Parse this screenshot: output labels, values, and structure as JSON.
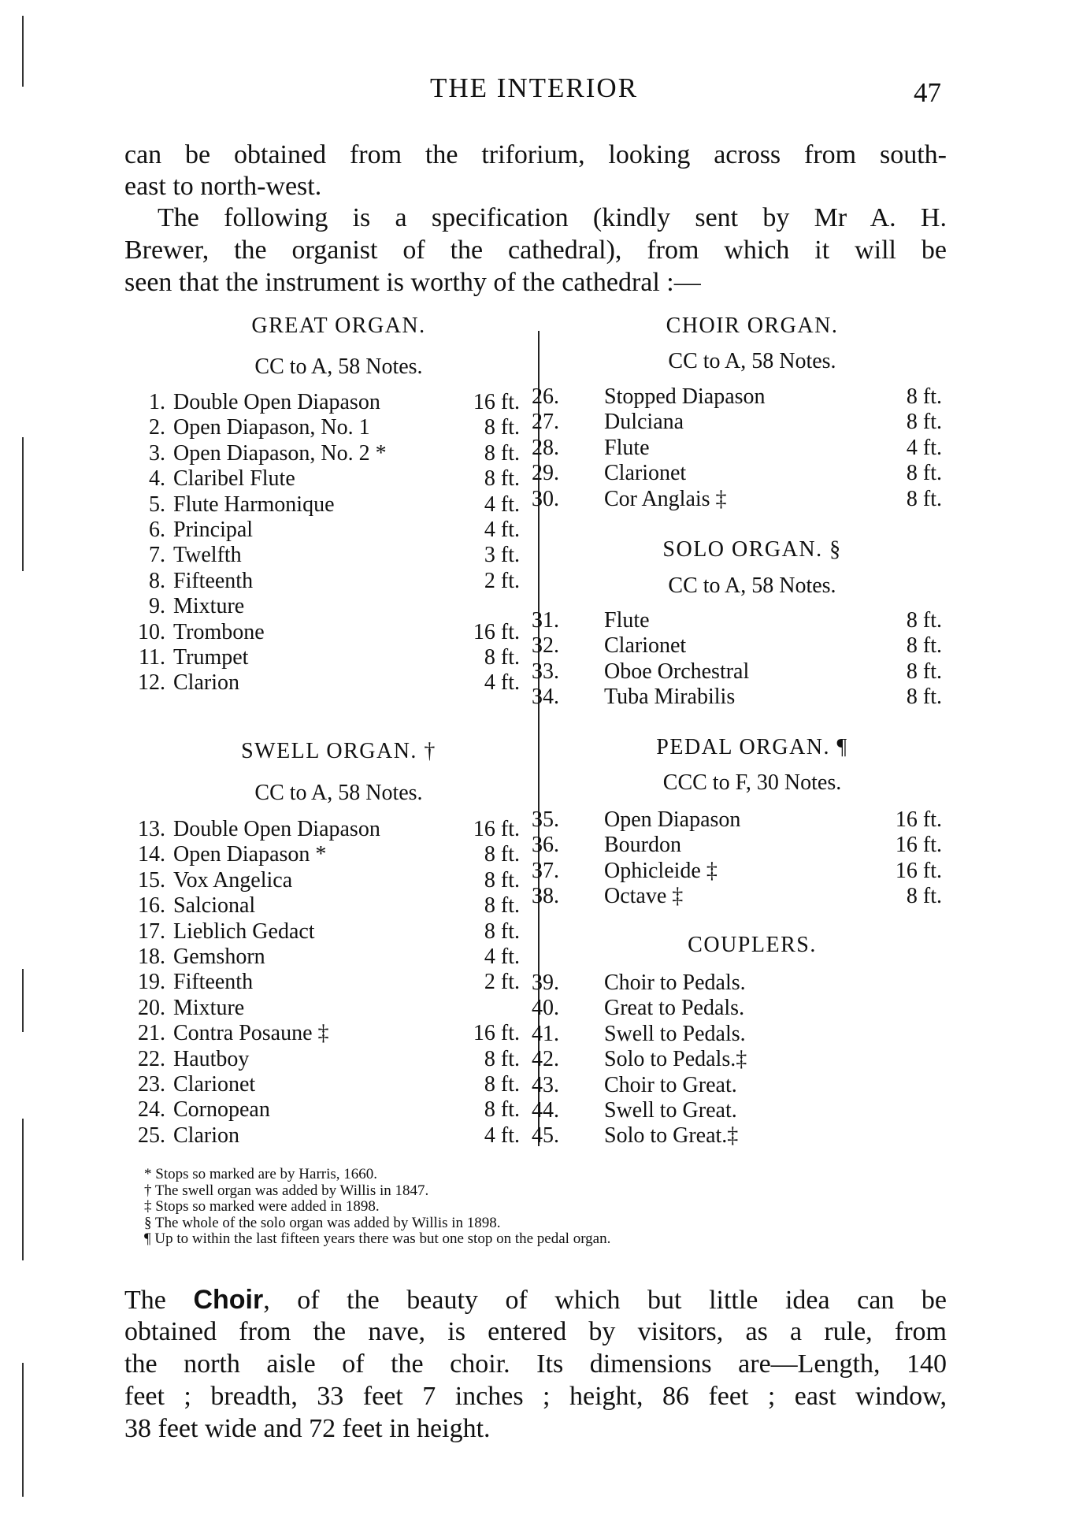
{
  "header": {
    "title": "THE INTERIOR",
    "page_number": "47"
  },
  "intro_lines": [
    "can be obtained from the triforium, looking across from south-",
    "east to north-west.",
    "The following is a specification (kindly sent by Mr A. H.",
    "Brewer, the organist of the cathedral), from which it will be",
    "seen that the instrument is worthy of the cathedral :—"
  ],
  "sections": {
    "great": {
      "heading": "GREAT ORGAN.",
      "compass": "CC to A, 58 Notes.",
      "stops": [
        {
          "num": "1.",
          "name": "Double Open Diapason",
          "value": "16 ft."
        },
        {
          "num": "2.",
          "name": "Open Diapason, No. 1",
          "value": "8 ft."
        },
        {
          "num": "3.",
          "name": "Open Diapason, No. 2 *",
          "value": "8 ft."
        },
        {
          "num": "4.",
          "name": "Claribel Flute",
          "value": "8 ft."
        },
        {
          "num": "5.",
          "name": "Flute Harmonique",
          "value": "4 ft."
        },
        {
          "num": "6.",
          "name": "Principal",
          "value": "4 ft."
        },
        {
          "num": "7.",
          "name": "Twelfth",
          "value": "3 ft."
        },
        {
          "num": "8.",
          "name": "Fifteenth",
          "value": "2 ft."
        },
        {
          "num": "9.",
          "name": "Mixture",
          "value": ""
        },
        {
          "num": "10.",
          "name": "Trombone",
          "value": "16 ft."
        },
        {
          "num": "11.",
          "name": "Trumpet",
          "value": "8 ft."
        },
        {
          "num": "12.",
          "name": "Clarion",
          "value": "4 ft."
        }
      ]
    },
    "swell": {
      "heading": "SWELL ORGAN. †",
      "compass": "CC to A, 58 Notes.",
      "stops": [
        {
          "num": "13.",
          "name": "Double Open Diapason",
          "value": "16 ft."
        },
        {
          "num": "14.",
          "name": "Open Diapason *",
          "value": "8 ft."
        },
        {
          "num": "15.",
          "name": "Vox Angelica",
          "value": "8 ft."
        },
        {
          "num": "16.",
          "name": "Salcional",
          "value": "8 ft."
        },
        {
          "num": "17.",
          "name": "Lieblich Gedact",
          "value": "8 ft."
        },
        {
          "num": "18.",
          "name": "Gemshorn",
          "value": "4 ft."
        },
        {
          "num": "19.",
          "name": "Fifteenth",
          "value": "2 ft."
        },
        {
          "num": "20.",
          "name": "Mixture",
          "value": ""
        },
        {
          "num": "21.",
          "name": "Contra Posaune ‡",
          "value": "16 ft."
        },
        {
          "num": "22.",
          "name": "Hautboy",
          "value": "8 ft."
        },
        {
          "num": "23.",
          "name": "Clarionet",
          "value": "8 ft."
        },
        {
          "num": "24.",
          "name": "Cornopean",
          "value": "8 ft."
        },
        {
          "num": "25.",
          "name": "Clarion",
          "value": "4 ft."
        }
      ]
    },
    "choir": {
      "heading": "CHOIR ORGAN.",
      "compass": "CC to A, 58 Notes.",
      "stops": [
        {
          "num": "26.",
          "name": "Stopped Diapason",
          "value": "8 ft."
        },
        {
          "num": "27.",
          "name": "Dulciana",
          "value": "8 ft."
        },
        {
          "num": "28.",
          "name": "Flute",
          "value": "4 ft."
        },
        {
          "num": "29.",
          "name": "Clarionet",
          "value": "8 ft."
        },
        {
          "num": "30.",
          "name": "Cor Anglais ‡",
          "value": "8 ft."
        }
      ]
    },
    "solo": {
      "heading": "SOLO ORGAN. §",
      "compass": "CC to A, 58 Notes.",
      "stops": [
        {
          "num": "31.",
          "name": "Flute",
          "value": "8 ft."
        },
        {
          "num": "32.",
          "name": "Clarionet",
          "value": "8 ft."
        },
        {
          "num": "33.",
          "name": "Oboe Orchestral",
          "value": "8 ft."
        },
        {
          "num": "34.",
          "name": "Tuba Mirabilis",
          "value": "8 ft."
        }
      ]
    },
    "pedal": {
      "heading": "PEDAL ORGAN. ¶",
      "compass": "CCC to F, 30 Notes.",
      "stops": [
        {
          "num": "35.",
          "name": "Open Diapason",
          "value": "16 ft."
        },
        {
          "num": "36.",
          "name": "Bourdon",
          "value": "16 ft."
        },
        {
          "num": "37.",
          "name": "Ophicleide ‡",
          "value": "16 ft."
        },
        {
          "num": "38.",
          "name": "Octave ‡",
          "value": "8 ft."
        }
      ]
    },
    "couplers": {
      "heading": "COUPLERS.",
      "stops": [
        {
          "num": "39.",
          "name": "Choir to Pedals.",
          "value": ""
        },
        {
          "num": "40.",
          "name": "Great to Pedals.",
          "value": ""
        },
        {
          "num": "41.",
          "name": "Swell to Pedals.",
          "value": ""
        },
        {
          "num": "42.",
          "name": "Solo to Pedals.‡",
          "value": ""
        },
        {
          "num": "43.",
          "name": "Choir to Great.",
          "value": ""
        },
        {
          "num": "44.",
          "name": "Swell to Great.",
          "value": ""
        },
        {
          "num": "45.",
          "name": "Solo to Great.‡",
          "value": ""
        }
      ]
    }
  },
  "footnotes": [
    "* Stops so marked are by Harris, 1660.",
    "† The swell organ was added by Willis in 1847.",
    "‡ Stops so marked were added in 1898.",
    "§ The whole of the solo organ was added by Willis in 1898.",
    "¶ Up to within the last fifteen years there was but one stop on the pedal organ."
  ],
  "closing": {
    "first_line_prefix": "The ",
    "first_line_bold": "Choir",
    "first_line_rest": ", of the beauty of which but little idea can be",
    "lines": [
      "obtained from the nave, is entered by visitors, as a rule, from",
      "the north aisle of the choir.  Its dimensions are—Length, 140",
      "feet ; breadth, 33 feet 7 inches ; height, 86 feet ; east window,",
      "38 feet wide and 72 feet in height."
    ]
  }
}
